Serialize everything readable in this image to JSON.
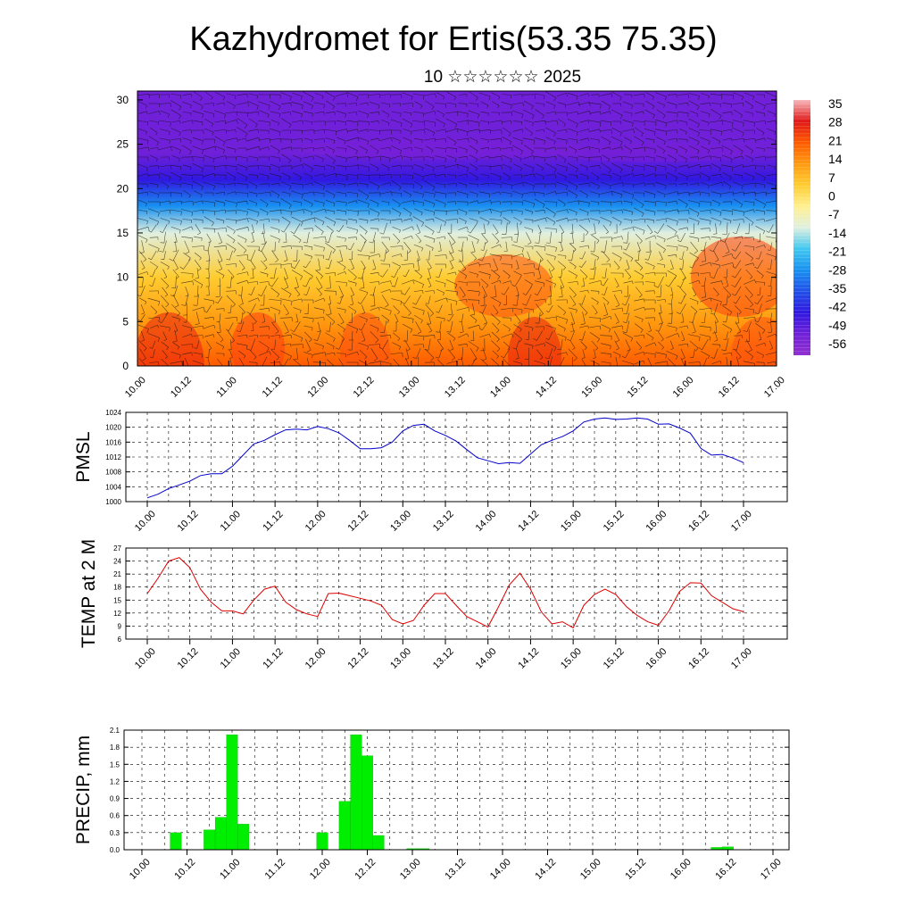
{
  "header": {
    "title": "Kazhydromet for Ertis(53.35 75.35)",
    "subtitle": "10 ☆☆☆☆☆☆ 2025"
  },
  "chart_data": [
    {
      "id": "cross-section",
      "type": "heatmap",
      "title": "Kazhydromet for Ertis(53.35 75.35)",
      "subtitle": "10 ☆☆☆☆☆☆ 2025",
      "x_ticks": [
        "10.00",
        "10.12",
        "11.00",
        "11.12",
        "12.00",
        "12.12",
        "13.00",
        "13.12",
        "14.00",
        "14.12",
        "15.00",
        "15.12",
        "16.00",
        "16.12",
        "17.00"
      ],
      "y_ticks": [
        0,
        5,
        10,
        15,
        20,
        25,
        30
      ],
      "ylim": [
        0,
        31
      ],
      "colorbar": {
        "labels": [
          "35",
          "28",
          "21",
          "14",
          "7",
          "0",
          "-7",
          "-14",
          "-21",
          "-28",
          "-35",
          "-42",
          "-49",
          "-56"
        ],
        "colors": [
          "#f6b8bc",
          "#e01818",
          "#ff5a00",
          "#ff9a10",
          "#ffcc30",
          "#fff090",
          "#e0f0e0",
          "#40c8f0",
          "#1890f0",
          "#2050e8",
          "#3018e0",
          "#7020d8",
          "#9030d0"
        ]
      },
      "temperature_profile": [
        {
          "height": 0,
          "t": 22
        },
        {
          "height": 5,
          "t": 16
        },
        {
          "height": 10,
          "t": 7
        },
        {
          "height": 15,
          "t": -10
        },
        {
          "height": 18,
          "t": -25
        },
        {
          "height": 21,
          "t": -42
        },
        {
          "height": 24,
          "t": -55
        },
        {
          "height": 27,
          "t": -50
        },
        {
          "height": 31,
          "t": -52
        }
      ]
    },
    {
      "id": "pmsl",
      "type": "line",
      "ylabel": "PMSL",
      "ylim": [
        1000,
        1024
      ],
      "y_ticks": [
        1000,
        1004,
        1008,
        1012,
        1016,
        1020,
        1024
      ],
      "x_ticks": [
        "10.00",
        "10.12",
        "11.00",
        "11.12",
        "12.00",
        "12.12",
        "13.00",
        "13.12",
        "14.00",
        "14.12",
        "15.00",
        "15.12",
        "16.00",
        "16.12",
        "17.00"
      ],
      "color": "#0000cc",
      "series": [
        {
          "x_hours": [
            0,
            3,
            6,
            9,
            12,
            15,
            18,
            21,
            24,
            27,
            30,
            33,
            36,
            39,
            42,
            45,
            48,
            51,
            54,
            57,
            60,
            63,
            66,
            69,
            72,
            75,
            78,
            81,
            84,
            87,
            90,
            93,
            96,
            99,
            102,
            105,
            108,
            111,
            114,
            117,
            120,
            123,
            126,
            129,
            132,
            135,
            138,
            141,
            144,
            147,
            150,
            153,
            156,
            159,
            162,
            165,
            168
          ],
          "values": [
            1001,
            1002,
            1003.5,
            1004.5,
            1005.5,
            1007,
            1007.5,
            1007.5,
            1009.5,
            1012.5,
            1015.5,
            1016.5,
            1018,
            1019.3,
            1019.5,
            1019.3,
            1020.2,
            1019.6,
            1018.5,
            1016.5,
            1014.2,
            1014.2,
            1014.5,
            1016,
            1019,
            1020.5,
            1020.8,
            1019,
            1017.8,
            1016.3,
            1014,
            1011.8,
            1011,
            1010.2,
            1010.5,
            1010.3,
            1012.8,
            1015.3,
            1016.5,
            1017.5,
            1019,
            1021.4,
            1022.2,
            1022.5,
            1022.1,
            1022.2,
            1022.5,
            1022.2,
            1020.8,
            1020.9,
            1019.8,
            1018.4,
            1014.3,
            1012.5,
            1012.7,
            1011.7,
            1010.5
          ]
        }
      ]
    },
    {
      "id": "temp2m",
      "type": "line",
      "ylabel": "TEMP at 2 M",
      "ylim": [
        6,
        27
      ],
      "y_ticks": [
        6,
        9,
        12,
        15,
        18,
        21,
        24,
        27
      ],
      "x_ticks": [
        "10.00",
        "10.12",
        "11.00",
        "11.12",
        "12.00",
        "12.12",
        "13.00",
        "13.12",
        "14.00",
        "14.12",
        "15.00",
        "15.12",
        "16.00",
        "16.12",
        "17.00"
      ],
      "color": "#dd0000",
      "series": [
        {
          "x_hours": [
            0,
            3,
            6,
            9,
            12,
            15,
            18,
            21,
            24,
            27,
            30,
            33,
            36,
            39,
            42,
            45,
            48,
            51,
            54,
            57,
            60,
            63,
            66,
            69,
            72,
            75,
            78,
            81,
            84,
            87,
            90,
            93,
            96,
            99,
            102,
            105,
            108,
            111,
            114,
            117,
            120,
            123,
            126,
            129,
            132,
            135,
            138,
            141,
            144,
            147,
            150,
            153,
            156,
            159,
            162,
            165,
            168
          ],
          "values": [
            16.5,
            20,
            24,
            24.8,
            22.5,
            17.5,
            14.5,
            12.5,
            12.5,
            11.8,
            15,
            17.5,
            18.2,
            14.5,
            12.8,
            11.8,
            11.2,
            16.5,
            16.6,
            16,
            15.4,
            14.8,
            13.8,
            10.5,
            9.5,
            10.3,
            13.8,
            16.5,
            16.5,
            13.8,
            11.2,
            10,
            8.8,
            13.5,
            18.5,
            21.2,
            17.5,
            12.3,
            9.5,
            10,
            8.6,
            13.8,
            16.3,
            17.5,
            16.3,
            13.5,
            11.5,
            10,
            9.2,
            12.5,
            17,
            19,
            18.9,
            16,
            14.5,
            13,
            12.3
          ]
        }
      ]
    },
    {
      "id": "precip",
      "type": "bar",
      "ylabel": "PRECIP, mm",
      "ylim": [
        0,
        2.1
      ],
      "y_ticks": [
        "0.0",
        "0.3",
        "0.6",
        "0.9",
        "1.2",
        "1.5",
        "1.8",
        "2.1"
      ],
      "x_ticks": [
        "10.00",
        "10.12",
        "11.00",
        "11.12",
        "12.00",
        "12.12",
        "13.00",
        "13.12",
        "14.00",
        "14.12",
        "15.00",
        "15.12",
        "16.00",
        "16.12",
        "17.00"
      ],
      "color": "#00ee00",
      "series": [
        {
          "x_hours": [
            9,
            18,
            21,
            24,
            27,
            48,
            54,
            57,
            60,
            63,
            72,
            75,
            153,
            156
          ],
          "values": [
            0.3,
            0.35,
            0.57,
            2.02,
            0.45,
            0.3,
            0.85,
            2.02,
            1.65,
            0.25,
            0.02,
            0.02,
            0.04,
            0.05
          ]
        }
      ]
    }
  ]
}
